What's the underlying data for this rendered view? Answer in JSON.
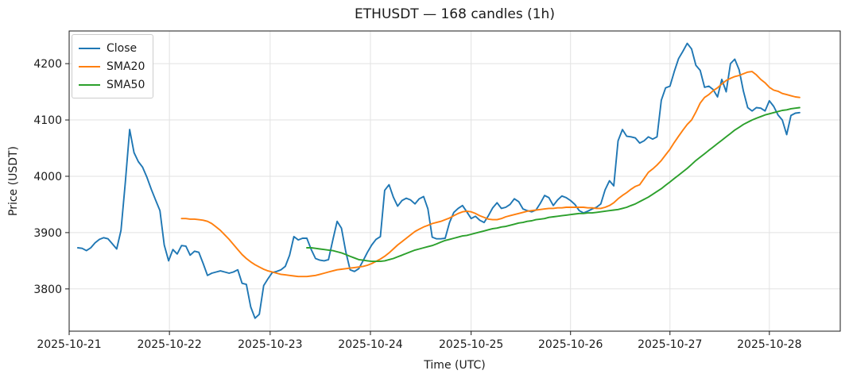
{
  "chart_data": {
    "type": "line",
    "title": "ETHUSDT — 168 candles (1h)",
    "symbol": "ETHUSDT",
    "candle_count": 168,
    "interval": "1h",
    "xlabel": "Time (UTC)",
    "ylabel": "Price (USDT)",
    "grid": true,
    "legend_position": "upper left",
    "ylim": [
      3725,
      4258
    ],
    "y_ticks": [
      3800,
      3900,
      4000,
      4100,
      4200
    ],
    "i_range": [
      -2.0,
      176.4
    ],
    "x_ticks": [
      {
        "label": "2025-10-21",
        "i": -2.0
      },
      {
        "label": "2025-10-22",
        "i": 21.2
      },
      {
        "label": "2025-10-23",
        "i": 44.5
      },
      {
        "label": "2025-10-24",
        "i": 67.7
      },
      {
        "label": "2025-10-25",
        "i": 91.0
      },
      {
        "label": "2025-10-26",
        "i": 114.0
      },
      {
        "label": "2025-10-27",
        "i": 137.0
      },
      {
        "label": "2025-10-28",
        "i": 160.0
      }
    ],
    "series": [
      {
        "name": "Close",
        "color": "#1f77b4",
        "start_index": 0,
        "values": [
          3873,
          3872,
          3868,
          3873,
          3882,
          3888,
          3891,
          3889,
          3880,
          3871,
          3904,
          3990,
          4083,
          4042,
          4026,
          4016,
          3998,
          3977,
          3958,
          3939,
          3878,
          3850,
          3870,
          3862,
          3877,
          3876,
          3860,
          3867,
          3865,
          3845,
          3824,
          3828,
          3830,
          3832,
          3830,
          3828,
          3830,
          3834,
          3810,
          3808,
          3768,
          3748,
          3755,
          3806,
          3818,
          3829,
          3831,
          3834,
          3840,
          3860,
          3893,
          3887,
          3890,
          3890,
          3870,
          3854,
          3851,
          3850,
          3852,
          3887,
          3920,
          3908,
          3866,
          3834,
          3831,
          3836,
          3850,
          3865,
          3878,
          3888,
          3893,
          3975,
          3985,
          3963,
          3947,
          3957,
          3961,
          3958,
          3951,
          3960,
          3964,
          3942,
          3892,
          3889,
          3889,
          3890,
          3918,
          3936,
          3943,
          3948,
          3937,
          3925,
          3929,
          3922,
          3918,
          3930,
          3944,
          3953,
          3943,
          3945,
          3950,
          3960,
          3955,
          3942,
          3939,
          3937,
          3940,
          3952,
          3966,
          3962,
          3948,
          3958,
          3965,
          3962,
          3957,
          3950,
          3939,
          3935,
          3938,
          3942,
          3945,
          3951,
          3976,
          3992,
          3983,
          4063,
          4083,
          4071,
          4070,
          4068,
          4059,
          4063,
          4070,
          4066,
          4070,
          4135,
          4157,
          4160,
          4186,
          4209,
          4222,
          4236,
          4226,
          4197,
          4188,
          4158,
          4160,
          4154,
          4141,
          4172,
          4150,
          4200,
          4208,
          4189,
          4151,
          4122,
          4116,
          4122,
          4121,
          4116,
          4134,
          4124,
          4109,
          4100,
          4074,
          4108,
          4112,
          4113
        ]
      },
      {
        "name": "SMA20",
        "color": "#ff7f0e",
        "start_index": 24,
        "values": [
          3925,
          3925,
          3924,
          3924,
          3923,
          3922,
          3920,
          3916,
          3910,
          3904,
          3896,
          3888,
          3879,
          3870,
          3861,
          3854,
          3848,
          3843,
          3839,
          3835,
          3832,
          3830,
          3828,
          3826,
          3825,
          3824,
          3823,
          3822,
          3822,
          3822,
          3823,
          3824,
          3826,
          3828,
          3830,
          3832,
          3834,
          3835,
          3836,
          3837,
          3838,
          3839,
          3840,
          3842,
          3845,
          3849,
          3853,
          3858,
          3864,
          3871,
          3878,
          3884,
          3890,
          3896,
          3902,
          3906,
          3910,
          3913,
          3916,
          3918,
          3920,
          3923,
          3926,
          3930,
          3934,
          3937,
          3938,
          3937,
          3934,
          3930,
          3927,
          3924,
          3923,
          3923,
          3925,
          3928,
          3930,
          3932,
          3934,
          3936,
          3938,
          3939,
          3940,
          3941,
          3942,
          3943,
          3943,
          3944,
          3944,
          3945,
          3945,
          3945,
          3945,
          3945,
          3944,
          3944,
          3943,
          3943,
          3945,
          3948,
          3953,
          3960,
          3966,
          3971,
          3977,
          3982,
          3985,
          3996,
          4007,
          4013,
          4020,
          4028,
          4038,
          4048,
          4060,
          4071,
          4082,
          4092,
          4100,
          4114,
          4130,
          4140,
          4145,
          4152,
          4157,
          4164,
          4170,
          4174,
          4177,
          4179,
          4182,
          4185,
          4186,
          4180,
          4172,
          4166,
          4158,
          4153,
          4151,
          4147,
          4145,
          4143,
          4141,
          4140
        ]
      },
      {
        "name": "SMA50",
        "color": "#2ca02c",
        "start_index": 53,
        "values": [
          3873,
          3873,
          3872,
          3871,
          3870,
          3869,
          3868,
          3866,
          3864,
          3861,
          3858,
          3855,
          3852,
          3851,
          3850,
          3849,
          3849,
          3849,
          3850,
          3852,
          3854,
          3857,
          3860,
          3863,
          3866,
          3869,
          3871,
          3873,
          3875,
          3877,
          3880,
          3883,
          3886,
          3888,
          3890,
          3892,
          3894,
          3895,
          3897,
          3899,
          3901,
          3903,
          3905,
          3907,
          3908,
          3910,
          3911,
          3913,
          3915,
          3917,
          3918,
          3920,
          3921,
          3923,
          3924,
          3925,
          3927,
          3928,
          3929,
          3930,
          3931,
          3932,
          3933,
          3934,
          3934,
          3935,
          3935,
          3936,
          3937,
          3938,
          3939,
          3940,
          3941,
          3943,
          3945,
          3948,
          3951,
          3955,
          3959,
          3963,
          3968,
          3973,
          3978,
          3984,
          3990,
          3996,
          4002,
          4008,
          4014,
          4021,
          4028,
          4034,
          4040,
          4046,
          4052,
          4058,
          4064,
          4070,
          4076,
          4082,
          4087,
          4092,
          4096,
          4100,
          4103,
          4106,
          4109,
          4111,
          4113,
          4115,
          4117,
          4118,
          4120,
          4121,
          4122
        ]
      }
    ]
  }
}
